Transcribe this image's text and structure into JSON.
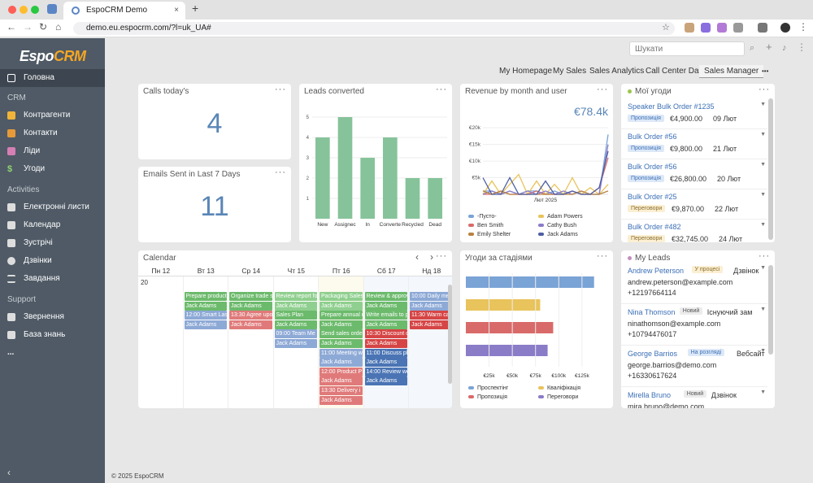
{
  "browser": {
    "tab_title": "EspoCRM Demo",
    "url": "demo.eu.espocrm.com/?l=uk_UA#"
  },
  "sidebar": {
    "logo_main": "Espo",
    "logo_accent": "CRM",
    "home": "Головна",
    "section_crm": "CRM",
    "crm_items": [
      "Контрагенти",
      "Контакти",
      "Ліди",
      "Угоди"
    ],
    "section_activities": "Activities",
    "activity_items": [
      "Електронні листи",
      "Календар",
      "Зустрічі",
      "Дзвінки",
      "Завдання"
    ],
    "section_support": "Support",
    "support_items": [
      "Звернення",
      "База знань"
    ],
    "more": "...",
    "collapse": "‹"
  },
  "header": {
    "search_placeholder": "Шукати",
    "dashboard_tabs": [
      "My Homepage",
      "My Sales",
      "Sales Analytics",
      "Call Center Data",
      "Sales Manager"
    ],
    "active_tab": "Sales Manager",
    "more": "•••"
  },
  "calls_today": {
    "title": "Calls today's",
    "value": "4"
  },
  "emails_sent": {
    "title": "Emails Sent in Last 7 Days",
    "value": "11"
  },
  "leads_converted": {
    "title": "Leads converted",
    "chart_data": {
      "type": "bar",
      "categories": [
        "New",
        "Assignec",
        "In",
        "Converte",
        "Recycled",
        "Dead"
      ],
      "values": [
        4,
        5,
        3,
        4,
        2,
        2
      ],
      "ylim": [
        0,
        5.4
      ],
      "yticks": [
        "1",
        "2",
        "3",
        "4",
        "5"
      ],
      "color": "#86c39a"
    }
  },
  "revenue": {
    "title": "Revenue by month and user",
    "total": "€78.4k",
    "chart_data": {
      "type": "line",
      "yticks": [
        "€5k",
        "€10k",
        "€15k",
        "€20k"
      ],
      "ylim": [
        0,
        22
      ],
      "xlabel": "Лют 2025",
      "series": [
        {
          "name": "-Пусто-",
          "color": "#7aa3d6",
          "values": [
            1,
            1,
            0,
            1,
            0,
            1,
            1,
            0,
            1,
            0,
            1,
            0,
            0,
            0,
            18
          ]
        },
        {
          "name": "Adam Powers",
          "color": "#e9c35b",
          "values": [
            0,
            4,
            0,
            3,
            6,
            0,
            4,
            0,
            3,
            0,
            5,
            0,
            2,
            0,
            3
          ]
        },
        {
          "name": "Ben Smith",
          "color": "#d96a6a",
          "values": [
            0,
            0,
            1,
            0,
            0,
            0,
            1,
            0,
            0,
            0,
            1,
            0,
            0,
            2,
            11
          ]
        },
        {
          "name": "Cathy Bush",
          "color": "#8b7cc8",
          "values": [
            0,
            1,
            0,
            1,
            0,
            1,
            0,
            1,
            0,
            1,
            0,
            1,
            0,
            0,
            15
          ]
        },
        {
          "name": "Emily Shelter",
          "color": "#b88240",
          "values": [
            1,
            0,
            1,
            0,
            0,
            0,
            0,
            0,
            0,
            0,
            0,
            1,
            0,
            0,
            1
          ]
        },
        {
          "name": "Jack Adams",
          "color": "#4d5fa3",
          "values": [
            5,
            0,
            0,
            5,
            0,
            0,
            0,
            4,
            0,
            0,
            1,
            0,
            0,
            2,
            13
          ]
        }
      ]
    }
  },
  "my_deals": {
    "title": "Мої угоди",
    "items": [
      {
        "name": "Speaker Bulk Order #1235",
        "stage": "Пропозиція",
        "amount": "€4,900.00",
        "date": "09 Лют"
      },
      {
        "name": "Bulk Order #56",
        "stage": "Пропозиція",
        "amount": "€9,800.00",
        "date": "21 Лют"
      },
      {
        "name": "Bulk Order #56",
        "stage": "Пропозиція",
        "amount": "€26,800.00",
        "date": "20 Лют"
      },
      {
        "name": "Bulk Order #25",
        "stage": "Переговори",
        "amount": "€9,870.00",
        "date": "22 Лют"
      },
      {
        "name": "Bulk Order #482",
        "stage": "Переговори",
        "amount": "€32,745.00",
        "date": "24 Лют"
      }
    ]
  },
  "calendar": {
    "title": "Calendar",
    "prev": "‹",
    "next": "›",
    "days": [
      "Пн 12",
      "Вт 13",
      "Ср 14",
      "Чт 15",
      "Пт 16",
      "Сб 17",
      "Нд 18"
    ],
    "first_date": "20",
    "events": [
      {
        "day": 1,
        "row": 0,
        "text": "Prepare product",
        "color": "#6cba6c"
      },
      {
        "day": 1,
        "row": 1,
        "text": "Jack Adams",
        "color": "#6cba6c"
      },
      {
        "day": 1,
        "row": 2,
        "text": "12:00 Smart Las",
        "color": "#8da9d6"
      },
      {
        "day": 1,
        "row": 3,
        "text": "Jack Adams",
        "color": "#8da9d6"
      },
      {
        "day": 2,
        "row": 0,
        "text": "Organize trade s",
        "color": "#6cba6c"
      },
      {
        "day": 2,
        "row": 1,
        "text": "Jack Adams",
        "color": "#6cba6c"
      },
      {
        "day": 2,
        "row": 2,
        "text": "13:30 Agree upo",
        "color": "#e07a7a"
      },
      {
        "day": 2,
        "row": 3,
        "text": "Jack Adams",
        "color": "#e07a7a"
      },
      {
        "day": 3,
        "row": 0,
        "text": "Review report fo",
        "color": "#8fcf8f"
      },
      {
        "day": 3,
        "row": 1,
        "text": "Jack Adams",
        "color": "#8fcf8f"
      },
      {
        "day": 3,
        "row": 2,
        "text": "Sales Plan",
        "color": "#6cba6c"
      },
      {
        "day": 3,
        "row": 3,
        "text": "Jack Adams",
        "color": "#6cba6c"
      },
      {
        "day": 3,
        "row": 4,
        "text": "09:00 Team Me",
        "color": "#8da9d6"
      },
      {
        "day": 3,
        "row": 5,
        "text": "Jack Adams",
        "color": "#8da9d6"
      },
      {
        "day": 4,
        "row": 0,
        "text": "Packaging Sales",
        "color": "#8fcf8f"
      },
      {
        "day": 4,
        "row": 1,
        "text": "Jack Adams",
        "color": "#8fcf8f"
      },
      {
        "day": 4,
        "row": 2,
        "text": "Prepare annual r",
        "color": "#6cba6c"
      },
      {
        "day": 4,
        "row": 3,
        "text": "Jack Adams",
        "color": "#6cba6c"
      },
      {
        "day": 4,
        "row": 4,
        "text": "Send sales orde",
        "color": "#6cba6c"
      },
      {
        "day": 4,
        "row": 5,
        "text": "Jack Adams",
        "color": "#6cba6c"
      },
      {
        "day": 4,
        "row": 6,
        "text": "11:00 Meeting w",
        "color": "#8da9d6"
      },
      {
        "day": 4,
        "row": 7,
        "text": "Jack Adams",
        "color": "#8da9d6"
      },
      {
        "day": 4,
        "row": 8,
        "text": "12:00 Product P",
        "color": "#e07a7a"
      },
      {
        "day": 4,
        "row": 9,
        "text": "Jack Adams",
        "color": "#e07a7a"
      },
      {
        "day": 4,
        "row": 10,
        "text": "13:30 Delivery i",
        "color": "#e07a7a"
      },
      {
        "day": 4,
        "row": 11,
        "text": "Jack Adams",
        "color": "#e07a7a"
      },
      {
        "day": 5,
        "row": 0,
        "text": "Review & approv",
        "color": "#6cba6c"
      },
      {
        "day": 5,
        "row": 1,
        "text": "Jack Adams",
        "color": "#6cba6c"
      },
      {
        "day": 5,
        "row": 2,
        "text": "Write emails to p",
        "color": "#6cba6c"
      },
      {
        "day": 5,
        "row": 3,
        "text": "Jack Adams",
        "color": "#6cba6c"
      },
      {
        "day": 5,
        "row": 4,
        "text": "10:30 Discount c",
        "color": "#d64545"
      },
      {
        "day": 5,
        "row": 5,
        "text": "Jack Adams",
        "color": "#d64545"
      },
      {
        "day": 5,
        "row": 6,
        "text": "11:00 Discuss pl",
        "color": "#4a74b4"
      },
      {
        "day": 5,
        "row": 7,
        "text": "Jack Adams",
        "color": "#4a74b4"
      },
      {
        "day": 5,
        "row": 8,
        "text": "14:00 Review wo",
        "color": "#4a74b4"
      },
      {
        "day": 5,
        "row": 9,
        "text": "Jack Adams",
        "color": "#4a74b4"
      },
      {
        "day": 6,
        "row": 0,
        "text": "10:00 Daily me",
        "color": "#8da9d6"
      },
      {
        "day": 6,
        "row": 1,
        "text": "Jack Adams",
        "color": "#8da9d6"
      },
      {
        "day": 6,
        "row": 2,
        "text": "11:30 Warm ca",
        "color": "#d64545"
      },
      {
        "day": 6,
        "row": 3,
        "text": "Jack Adams",
        "color": "#d64545"
      }
    ]
  },
  "deals_by_stage": {
    "title": "Угоди за стадіями",
    "chart_data": {
      "type": "bar",
      "orientation": "horizontal",
      "categories": [
        "Проспектінг",
        "Кваліфікація",
        "Пропозиція",
        "Переговори"
      ],
      "values": [
        138000,
        80000,
        94000,
        88000
      ],
      "colors": [
        "#7aa3d6",
        "#e9c35b",
        "#d96a6a",
        "#8b7cc8"
      ],
      "xticks": [
        "€25k",
        "€50k",
        "€75k",
        "€100k",
        "€125k"
      ],
      "xlim": [
        0,
        140000
      ]
    }
  },
  "my_leads": {
    "title": "My Leads",
    "items": [
      {
        "name": "Andrew Peterson",
        "status": "У процесі",
        "status_bg": "#fbefd3",
        "status_color": "#8a6d2a",
        "source": "Дзвінок",
        "email": "andrew.peterson@example.com",
        "phone": "+12197664114"
      },
      {
        "name": "Nina Thomson",
        "status": "Новий",
        "status_bg": "#ececec",
        "status_color": "#555",
        "source": "Існуючий зам...",
        "email": "ninathomson@example.com",
        "phone": "+10794476017"
      },
      {
        "name": "George Barrios",
        "status": "На розгляді",
        "status_bg": "#dde8f7",
        "status_color": "#3b6fb6",
        "source": "Вебсайт",
        "email": "george.barrios@demo.com",
        "phone": "+16330617624"
      },
      {
        "name": "Mirella Bruno",
        "status": "Новий",
        "status_bg": "#ececec",
        "status_color": "#555",
        "source": "Дзвінок",
        "email": "mira.bruno@demo.com",
        "phone": ""
      }
    ]
  },
  "footer": {
    "text": "© 2025 EspoCRM"
  },
  "colors": {
    "sidebar_bg": "#4f5a66",
    "accent_blue": "#5a86b6",
    "logo_accent": "#f5a623"
  }
}
